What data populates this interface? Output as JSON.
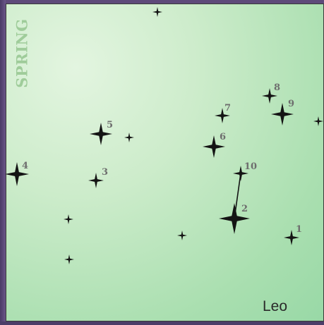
{
  "season": "SPRING",
  "constellation": "Leo",
  "colors": {
    "star": "#141414",
    "number": "#6e6e6e",
    "season_text": "#9fcc9a",
    "sky_light": "#e3f5e0",
    "sky_dark": "#98d8a6",
    "frame": "#5a4a78"
  },
  "numbered_stars": [
    {
      "number": "1"
    },
    {
      "number": "2"
    },
    {
      "number": "3"
    },
    {
      "number": "4"
    },
    {
      "number": "5"
    },
    {
      "number": "6"
    },
    {
      "number": "7"
    },
    {
      "number": "8"
    },
    {
      "number": "9"
    },
    {
      "number": "10"
    }
  ],
  "connections": [
    {
      "from": "2",
      "to": "10"
    }
  ]
}
